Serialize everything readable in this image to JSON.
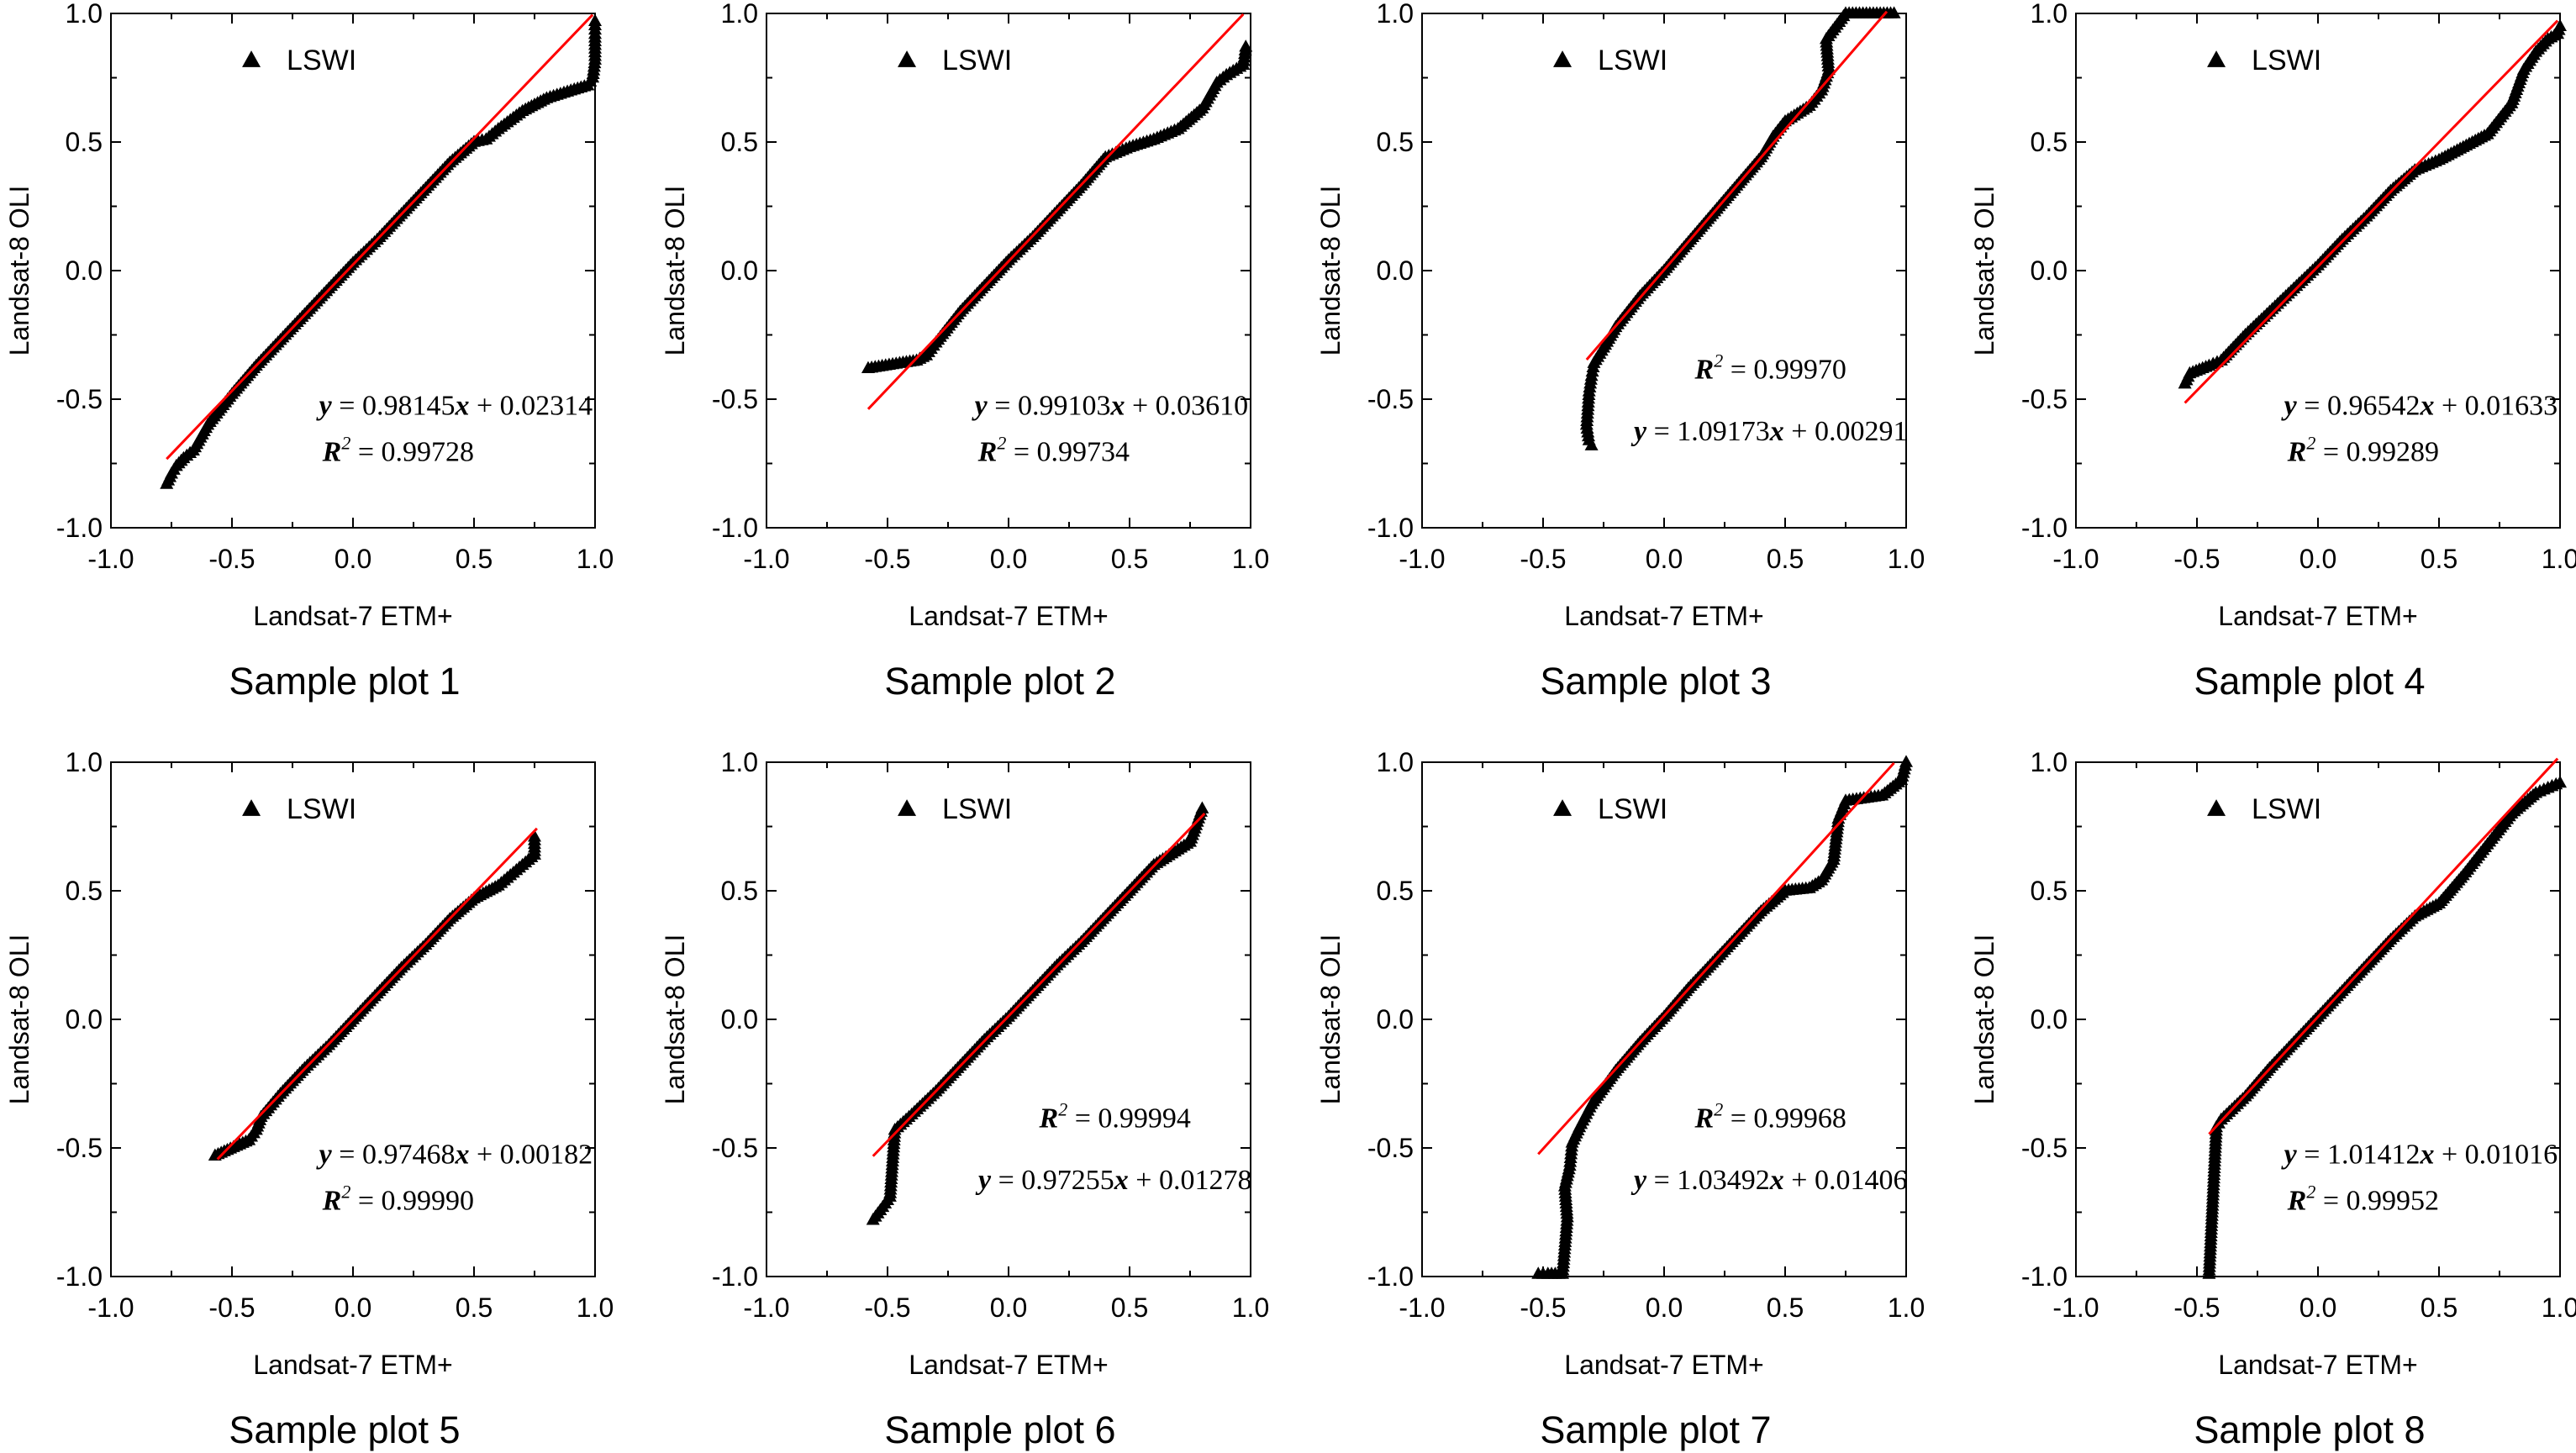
{
  "figure": {
    "colors": {
      "points": "#000000",
      "fit_line": "#ff0000",
      "axes": "#000000"
    },
    "shared": {
      "xlabel": "Landsat-7 ETM+",
      "ylabel": "Landsat-8 OLI",
      "legend_label": "LSWI",
      "legend_marker": "triangle-up",
      "xlim": [
        -1.0,
        1.0
      ],
      "ylim": [
        -1.0,
        1.0
      ],
      "xticks": [
        "-1.0",
        "-0.5",
        "0.0",
        "0.5",
        "1.0"
      ],
      "yticks": [
        "-1.0",
        "-0.5",
        "0.0",
        "0.5",
        "1.0"
      ],
      "grid": false
    }
  },
  "chart_data": [
    {
      "type": "scatter",
      "caption": "Sample plot 1",
      "title": "",
      "xlabel": "Landsat-7 ETM+",
      "ylabel": "Landsat-8 OLI",
      "xlim": [
        -1.0,
        1.0
      ],
      "ylim": [
        -1.0,
        1.0
      ],
      "legend": "LSWI",
      "series": [
        {
          "name": "LSWI",
          "marker": "triangle"
        }
      ],
      "fit": {
        "slope": 0.98145,
        "intercept": 0.02314,
        "equation": "= 0.98145",
        "equation_rest": " + 0.02314",
        "r2": "= 0.99728",
        "x_range": [
          -0.77,
          0.99
        ]
      },
      "equation_order": "eq-first",
      "points": [
        [
          -0.77,
          -0.83
        ],
        [
          -0.75,
          -0.79
        ],
        [
          -0.73,
          -0.76
        ],
        [
          -0.7,
          -0.73
        ],
        [
          -0.66,
          -0.7
        ],
        [
          -0.6,
          -0.6
        ],
        [
          -0.5,
          -0.48
        ],
        [
          -0.4,
          -0.37
        ],
        [
          -0.3,
          -0.27
        ],
        [
          -0.2,
          -0.17
        ],
        [
          -0.1,
          -0.07
        ],
        [
          0.0,
          0.03
        ],
        [
          0.1,
          0.12
        ],
        [
          0.2,
          0.22
        ],
        [
          0.3,
          0.32
        ],
        [
          0.4,
          0.42
        ],
        [
          0.5,
          0.5
        ],
        [
          0.55,
          0.51
        ],
        [
          0.6,
          0.55
        ],
        [
          0.7,
          0.62
        ],
        [
          0.8,
          0.67
        ],
        [
          0.9,
          0.7
        ],
        [
          0.97,
          0.72
        ],
        [
          0.99,
          0.75
        ],
        [
          1.0,
          0.82
        ],
        [
          1.0,
          0.92
        ],
        [
          1.0,
          0.97
        ]
      ]
    },
    {
      "type": "scatter",
      "caption": "Sample plot 2",
      "title": "",
      "xlabel": "Landsat-7 ETM+",
      "ylabel": "Landsat-8 OLI",
      "xlim": [
        -1.0,
        1.0
      ],
      "ylim": [
        -1.0,
        1.0
      ],
      "legend": "LSWI",
      "series": [
        {
          "name": "LSWI",
          "marker": "triangle"
        }
      ],
      "fit": {
        "slope": 0.99103,
        "intercept": 0.0361,
        "equation": "= 0.99103",
        "equation_rest": " + 0.03610",
        "r2": "= 0.99734",
        "x_range": [
          -0.58,
          0.97
        ]
      },
      "equation_order": "eq-first",
      "points": [
        [
          -0.58,
          -0.38
        ],
        [
          -0.45,
          -0.36
        ],
        [
          -0.38,
          -0.35
        ],
        [
          -0.34,
          -0.33
        ],
        [
          -0.3,
          -0.28
        ],
        [
          -0.2,
          -0.16
        ],
        [
          -0.1,
          -0.06
        ],
        [
          0.0,
          0.04
        ],
        [
          0.1,
          0.13
        ],
        [
          0.2,
          0.23
        ],
        [
          0.3,
          0.33
        ],
        [
          0.4,
          0.44
        ],
        [
          0.5,
          0.48
        ],
        [
          0.6,
          0.51
        ],
        [
          0.7,
          0.55
        ],
        [
          0.8,
          0.63
        ],
        [
          0.86,
          0.73
        ],
        [
          0.9,
          0.76
        ],
        [
          0.97,
          0.8
        ],
        [
          0.98,
          0.87
        ]
      ]
    },
    {
      "type": "scatter",
      "caption": "Sample plot 3",
      "title": "",
      "xlabel": "Landsat-7 ETM+",
      "ylabel": "Landsat-8 OLI",
      "xlim": [
        -1.0,
        1.0
      ],
      "ylim": [
        -1.0,
        1.0
      ],
      "legend": "LSWI",
      "series": [
        {
          "name": "LSWI",
          "marker": "triangle"
        }
      ],
      "fit": {
        "slope": 1.09173,
        "intercept": 0.00291,
        "equation": "= 1.09173",
        "equation_rest": " + 0.00291",
        "r2": "= 0.99970",
        "x_range": [
          -0.32,
          0.92
        ]
      },
      "equation_order": "r2-first",
      "points": [
        [
          -0.3,
          -0.68
        ],
        [
          -0.31,
          -0.66
        ],
        [
          -0.32,
          -0.6
        ],
        [
          -0.31,
          -0.47
        ],
        [
          -0.3,
          -0.41
        ],
        [
          -0.29,
          -0.36
        ],
        [
          -0.25,
          -0.3
        ],
        [
          -0.2,
          -0.22
        ],
        [
          -0.1,
          -0.1
        ],
        [
          0.0,
          0.0
        ],
        [
          0.1,
          0.11
        ],
        [
          0.2,
          0.22
        ],
        [
          0.3,
          0.33
        ],
        [
          0.4,
          0.44
        ],
        [
          0.45,
          0.52
        ],
        [
          0.5,
          0.58
        ],
        [
          0.6,
          0.64
        ],
        [
          0.65,
          0.7
        ],
        [
          0.68,
          0.78
        ],
        [
          0.67,
          0.9
        ],
        [
          0.75,
          1.0
        ],
        [
          0.85,
          1.0
        ],
        [
          0.95,
          1.0
        ]
      ]
    },
    {
      "type": "scatter",
      "caption": "Sample plot 4",
      "title": "",
      "xlabel": "Landsat-7 ETM+",
      "ylabel": "Landsat-8 OLI",
      "xlim": [
        -1.0,
        1.0
      ],
      "ylim": [
        -1.0,
        1.0
      ],
      "legend": "LSWI",
      "series": [
        {
          "name": "LSWI",
          "marker": "triangle"
        }
      ],
      "fit": {
        "slope": 0.96542,
        "intercept": 0.01633,
        "equation": "= 0.96542",
        "equation_rest": " + 0.01633",
        "r2": "= 0.99289",
        "x_range": [
          -0.55,
          0.99
        ]
      },
      "equation_order": "eq-first",
      "points": [
        [
          -0.55,
          -0.44
        ],
        [
          -0.53,
          -0.4
        ],
        [
          -0.45,
          -0.37
        ],
        [
          -0.4,
          -0.35
        ],
        [
          -0.3,
          -0.25
        ],
        [
          -0.2,
          -0.16
        ],
        [
          -0.1,
          -0.07
        ],
        [
          0.0,
          0.02
        ],
        [
          0.1,
          0.12
        ],
        [
          0.2,
          0.21
        ],
        [
          0.3,
          0.31
        ],
        [
          0.4,
          0.39
        ],
        [
          0.5,
          0.43
        ],
        [
          0.6,
          0.48
        ],
        [
          0.7,
          0.53
        ],
        [
          0.8,
          0.65
        ],
        [
          0.85,
          0.78
        ],
        [
          0.9,
          0.85
        ],
        [
          0.95,
          0.9
        ],
        [
          0.99,
          0.92
        ],
        [
          1.0,
          0.95
        ]
      ]
    },
    {
      "type": "scatter",
      "caption": "Sample plot 5",
      "title": "",
      "xlabel": "Landsat-7 ETM+",
      "ylabel": "Landsat-8 OLI",
      "xlim": [
        -1.0,
        1.0
      ],
      "ylim": [
        -1.0,
        1.0
      ],
      "legend": "LSWI",
      "series": [
        {
          "name": "LSWI",
          "marker": "triangle"
        }
      ],
      "fit": {
        "slope": 0.97468,
        "intercept": 0.00182,
        "equation": "= 0.97468",
        "equation_rest": " + 0.00182",
        "r2": "= 0.99990",
        "x_range": [
          -0.56,
          0.76
        ]
      },
      "equation_order": "eq-first",
      "points": [
        [
          -0.57,
          -0.53
        ],
        [
          -0.43,
          -0.47
        ],
        [
          -0.4,
          -0.43
        ],
        [
          -0.38,
          -0.38
        ],
        [
          -0.3,
          -0.29
        ],
        [
          -0.2,
          -0.19
        ],
        [
          -0.1,
          -0.1
        ],
        [
          0.0,
          0.0
        ],
        [
          0.1,
          0.1
        ],
        [
          0.2,
          0.2
        ],
        [
          0.3,
          0.29
        ],
        [
          0.4,
          0.39
        ],
        [
          0.5,
          0.47
        ],
        [
          0.6,
          0.52
        ],
        [
          0.65,
          0.56
        ],
        [
          0.7,
          0.6
        ],
        [
          0.75,
          0.64
        ],
        [
          0.75,
          0.71
        ]
      ]
    },
    {
      "type": "scatter",
      "caption": "Sample plot 6",
      "title": "",
      "xlabel": "Landsat-7 ETM+",
      "ylabel": "Landsat-8 OLI",
      "xlim": [
        -1.0,
        1.0
      ],
      "ylim": [
        -1.0,
        1.0
      ],
      "legend": "LSWI",
      "series": [
        {
          "name": "LSWI",
          "marker": "triangle"
        }
      ],
      "fit": {
        "slope": 0.97255,
        "intercept": 0.01278,
        "equation": "= 0.97255",
        "equation_rest": " + 0.01278",
        "r2": "= 0.99994",
        "x_range": [
          -0.56,
          0.81
        ]
      },
      "equation_order": "r2-first",
      "points": [
        [
          -0.56,
          -0.78
        ],
        [
          -0.52,
          -0.73
        ],
        [
          -0.49,
          -0.69
        ],
        [
          -0.47,
          -0.43
        ],
        [
          -0.4,
          -0.37
        ],
        [
          -0.3,
          -0.28
        ],
        [
          -0.2,
          -0.18
        ],
        [
          -0.1,
          -0.08
        ],
        [
          0.0,
          0.01
        ],
        [
          0.1,
          0.11
        ],
        [
          0.2,
          0.21
        ],
        [
          0.3,
          0.3
        ],
        [
          0.4,
          0.4
        ],
        [
          0.5,
          0.5
        ],
        [
          0.6,
          0.6
        ],
        [
          0.7,
          0.66
        ],
        [
          0.75,
          0.69
        ],
        [
          0.8,
          0.82
        ]
      ]
    },
    {
      "type": "scatter",
      "caption": "Sample plot 7",
      "title": "",
      "xlabel": "Landsat-7 ETM+",
      "ylabel": "Landsat-8 OLI",
      "xlim": [
        -1.0,
        1.0
      ],
      "ylim": [
        -1.0,
        1.0
      ],
      "legend": "LSWI",
      "series": [
        {
          "name": "LSWI",
          "marker": "triangle"
        }
      ],
      "fit": {
        "slope": 1.03492,
        "intercept": 0.01406,
        "equation": "= 1.03492",
        "equation_rest": " + 0.01406",
        "r2": "= 0.99968",
        "x_range": [
          -0.52,
          0.95
        ]
      },
      "equation_order": "r2-first",
      "points": [
        [
          -0.52,
          -0.99
        ],
        [
          -0.48,
          -0.99
        ],
        [
          -0.42,
          -0.99
        ],
        [
          -0.4,
          -0.77
        ],
        [
          -0.41,
          -0.65
        ],
        [
          -0.39,
          -0.57
        ],
        [
          -0.38,
          -0.48
        ],
        [
          -0.35,
          -0.42
        ],
        [
          -0.3,
          -0.33
        ],
        [
          -0.2,
          -0.2
        ],
        [
          -0.1,
          -0.09
        ],
        [
          0.0,
          0.01
        ],
        [
          0.1,
          0.12
        ],
        [
          0.2,
          0.22
        ],
        [
          0.3,
          0.32
        ],
        [
          0.4,
          0.42
        ],
        [
          0.5,
          0.5
        ],
        [
          0.6,
          0.51
        ],
        [
          0.65,
          0.54
        ],
        [
          0.7,
          0.62
        ],
        [
          0.72,
          0.78
        ],
        [
          0.75,
          0.85
        ],
        [
          0.9,
          0.87
        ],
        [
          0.98,
          0.93
        ],
        [
          1.0,
          1.0
        ]
      ]
    },
    {
      "type": "scatter",
      "caption": "Sample plot 8",
      "title": "",
      "xlabel": "Landsat-7 ETM+",
      "ylabel": "Landsat-8 OLI",
      "xlim": [
        -1.0,
        1.0
      ],
      "ylim": [
        -1.0,
        1.0
      ],
      "legend": "LSWI",
      "series": [
        {
          "name": "LSWI",
          "marker": "triangle"
        }
      ],
      "fit": {
        "slope": 1.01412,
        "intercept": 0.01016,
        "equation": "= 1.01412",
        "equation_rest": " + 0.01016",
        "r2": "= 0.99952",
        "x_range": [
          -0.45,
          0.99
        ]
      },
      "equation_order": "eq-first",
      "points": [
        [
          -0.45,
          -0.99
        ],
        [
          -0.42,
          -0.42
        ],
        [
          -0.4,
          -0.39
        ],
        [
          -0.3,
          -0.3
        ],
        [
          -0.2,
          -0.19
        ],
        [
          -0.1,
          -0.09
        ],
        [
          0.0,
          0.01
        ],
        [
          0.1,
          0.11
        ],
        [
          0.2,
          0.21
        ],
        [
          0.3,
          0.31
        ],
        [
          0.4,
          0.4
        ],
        [
          0.5,
          0.45
        ],
        [
          0.6,
          0.56
        ],
        [
          0.7,
          0.68
        ],
        [
          0.8,
          0.8
        ],
        [
          0.9,
          0.88
        ],
        [
          0.95,
          0.9
        ],
        [
          1.0,
          0.92
        ]
      ]
    }
  ]
}
